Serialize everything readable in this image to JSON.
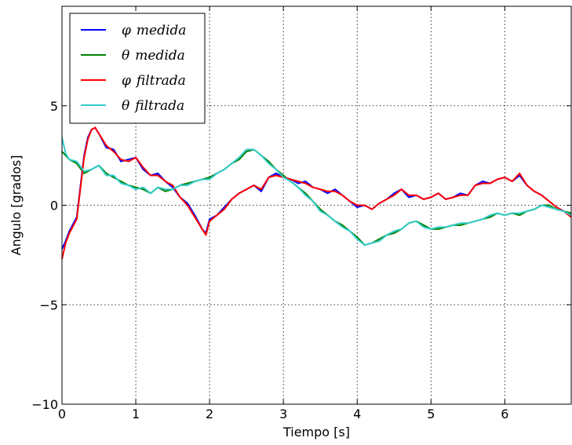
{
  "chart_data": {
    "type": "line",
    "title": "",
    "xlabel": "Tiempo [s]",
    "ylabel": "Angulo [grados]",
    "xlim": [
      0,
      6.9
    ],
    "ylim": [
      -10,
      10
    ],
    "xticks": [
      {
        "v": 0,
        "label": "0"
      },
      {
        "v": 1,
        "label": "1"
      },
      {
        "v": 2,
        "label": "2"
      },
      {
        "v": 3,
        "label": "3"
      },
      {
        "v": 4,
        "label": "4"
      },
      {
        "v": 5,
        "label": "5"
      },
      {
        "v": 6,
        "label": "6"
      }
    ],
    "yticks": [
      {
        "v": -10,
        "label": "−10"
      },
      {
        "v": -5,
        "label": "−5"
      },
      {
        "v": 0,
        "label": "0"
      },
      {
        "v": 5,
        "label": "5"
      }
    ],
    "grid": true,
    "legend_position": "top-left",
    "series": [
      {
        "name": "φ medida",
        "legend_symbol": "φ",
        "legend_word": "medida",
        "color": "#0000ff",
        "x": [
          0,
          0.05,
          0.1,
          0.2,
          0.3,
          0.35,
          0.4,
          0.45,
          0.5,
          0.6,
          0.7,
          0.8,
          0.9,
          1.0,
          1.1,
          1.2,
          1.3,
          1.4,
          1.5,
          1.6,
          1.7,
          1.8,
          1.9,
          1.95,
          2.0,
          2.1,
          2.2,
          2.3,
          2.4,
          2.5,
          2.6,
          2.7,
          2.8,
          2.9,
          3.0,
          3.1,
          3.2,
          3.3,
          3.4,
          3.5,
          3.6,
          3.7,
          3.8,
          3.9,
          4.0,
          4.1,
          4.2,
          4.3,
          4.4,
          4.5,
          4.6,
          4.7,
          4.8,
          4.9,
          5.0,
          5.1,
          5.2,
          5.3,
          5.4,
          5.5,
          5.6,
          5.7,
          5.8,
          5.9,
          6.0,
          6.1,
          6.2,
          6.3,
          6.4,
          6.5,
          6.6,
          6.7,
          6.8,
          6.9
        ],
        "y": [
          -2.2,
          -1.8,
          -1.3,
          -0.6,
          2.5,
          3.4,
          3.8,
          3.9,
          3.6,
          2.9,
          2.8,
          2.2,
          2.3,
          2.4,
          1.8,
          1.5,
          1.6,
          1.2,
          0.9,
          0.4,
          0.1,
          -0.5,
          -1.2,
          -1.4,
          -0.7,
          -0.5,
          -0.1,
          0.3,
          0.6,
          0.8,
          1.0,
          0.7,
          1.4,
          1.6,
          1.4,
          1.3,
          1.1,
          1.2,
          0.9,
          0.8,
          0.6,
          0.8,
          0.5,
          0.2,
          -0.1,
          0.0,
          -0.2,
          0.1,
          0.3,
          0.6,
          0.8,
          0.4,
          0.5,
          0.3,
          0.4,
          0.6,
          0.3,
          0.4,
          0.6,
          0.5,
          1.0,
          1.2,
          1.1,
          1.3,
          1.4,
          1.2,
          1.5,
          1.0,
          0.7,
          0.5,
          0.2,
          -0.1,
          -0.3,
          -0.5
        ]
      },
      {
        "name": "θ medida",
        "legend_symbol": "θ",
        "legend_word": "medida",
        "color": "#008000",
        "x": [
          0,
          0.05,
          0.1,
          0.2,
          0.3,
          0.4,
          0.5,
          0.6,
          0.7,
          0.8,
          0.9,
          1.0,
          1.1,
          1.2,
          1.3,
          1.4,
          1.5,
          1.6,
          1.7,
          1.8,
          1.9,
          2.0,
          2.1,
          2.2,
          2.3,
          2.4,
          2.5,
          2.6,
          2.7,
          2.8,
          2.9,
          3.0,
          3.1,
          3.2,
          3.3,
          3.4,
          3.5,
          3.6,
          3.7,
          3.8,
          3.9,
          4.0,
          4.1,
          4.2,
          4.3,
          4.4,
          4.5,
          4.6,
          4.7,
          4.8,
          4.9,
          5.0,
          5.1,
          5.2,
          5.3,
          5.4,
          5.5,
          5.6,
          5.7,
          5.8,
          5.9,
          6.0,
          6.1,
          6.2,
          6.3,
          6.4,
          6.5,
          6.6,
          6.7,
          6.8,
          6.9
        ],
        "y": [
          2.7,
          2.5,
          2.3,
          2.1,
          1.6,
          1.8,
          2.0,
          1.6,
          1.4,
          1.2,
          1.0,
          0.9,
          0.8,
          0.6,
          0.9,
          0.7,
          0.8,
          1.0,
          1.1,
          1.2,
          1.3,
          1.4,
          1.6,
          1.8,
          2.1,
          2.3,
          2.7,
          2.8,
          2.5,
          2.2,
          1.8,
          1.5,
          1.2,
          0.9,
          0.6,
          0.2,
          -0.2,
          -0.5,
          -0.8,
          -1.0,
          -1.3,
          -1.6,
          -2.0,
          -1.9,
          -1.7,
          -1.5,
          -1.4,
          -1.2,
          -0.9,
          -0.8,
          -1.0,
          -1.2,
          -1.2,
          -1.1,
          -1.0,
          -1.0,
          -0.9,
          -0.8,
          -0.7,
          -0.6,
          -0.4,
          -0.5,
          -0.4,
          -0.5,
          -0.3,
          -0.2,
          0.0,
          0.0,
          -0.2,
          -0.3,
          -0.4
        ]
      },
      {
        "name": "φ filtrada",
        "legend_symbol": "φ",
        "legend_word": "filtrada",
        "color": "#ff0000",
        "x": [
          0,
          0.05,
          0.1,
          0.2,
          0.3,
          0.35,
          0.4,
          0.45,
          0.5,
          0.6,
          0.7,
          0.8,
          0.9,
          1.0,
          1.1,
          1.2,
          1.3,
          1.4,
          1.5,
          1.6,
          1.7,
          1.8,
          1.9,
          1.95,
          2.0,
          2.1,
          2.2,
          2.3,
          2.4,
          2.5,
          2.6,
          2.7,
          2.8,
          2.9,
          3.0,
          3.1,
          3.2,
          3.3,
          3.4,
          3.5,
          3.6,
          3.7,
          3.8,
          3.9,
          4.0,
          4.1,
          4.2,
          4.3,
          4.4,
          4.5,
          4.6,
          4.7,
          4.8,
          4.9,
          5.0,
          5.1,
          5.2,
          5.3,
          5.4,
          5.5,
          5.6,
          5.7,
          5.8,
          5.9,
          6.0,
          6.1,
          6.2,
          6.3,
          6.4,
          6.5,
          6.6,
          6.7,
          6.8,
          6.9
        ],
        "y": [
          -2.7,
          -1.9,
          -1.4,
          -0.7,
          2.4,
          3.3,
          3.8,
          3.9,
          3.6,
          3.0,
          2.7,
          2.3,
          2.2,
          2.4,
          1.9,
          1.5,
          1.5,
          1.2,
          1.0,
          0.4,
          0.0,
          -0.6,
          -1.2,
          -1.5,
          -0.8,
          -0.5,
          -0.2,
          0.3,
          0.6,
          0.8,
          1.0,
          0.8,
          1.4,
          1.5,
          1.4,
          1.3,
          1.2,
          1.1,
          0.9,
          0.8,
          0.7,
          0.7,
          0.5,
          0.2,
          0.0,
          0.0,
          -0.2,
          0.1,
          0.3,
          0.5,
          0.8,
          0.5,
          0.5,
          0.3,
          0.4,
          0.6,
          0.3,
          0.4,
          0.5,
          0.5,
          1.0,
          1.1,
          1.1,
          1.3,
          1.4,
          1.2,
          1.6,
          1.0,
          0.7,
          0.5,
          0.2,
          -0.1,
          -0.3,
          -0.6
        ]
      },
      {
        "name": "θ filtrada",
        "legend_symbol": "θ",
        "legend_word": "filtrada",
        "color": "#33cccc",
        "x": [
          0,
          0.05,
          0.1,
          0.2,
          0.3,
          0.4,
          0.5,
          0.6,
          0.7,
          0.8,
          0.9,
          1.0,
          1.1,
          1.2,
          1.3,
          1.4,
          1.5,
          1.6,
          1.7,
          1.8,
          1.9,
          2.0,
          2.1,
          2.2,
          2.3,
          2.4,
          2.5,
          2.6,
          2.7,
          2.8,
          2.9,
          3.0,
          3.1,
          3.2,
          3.3,
          3.4,
          3.5,
          3.6,
          3.7,
          3.8,
          3.9,
          4.0,
          4.1,
          4.2,
          4.3,
          4.4,
          4.5,
          4.6,
          4.7,
          4.8,
          4.9,
          5.0,
          5.1,
          5.2,
          5.3,
          5.4,
          5.5,
          5.6,
          5.7,
          5.8,
          5.9,
          6.0,
          6.1,
          6.2,
          6.3,
          6.4,
          6.5,
          6.6,
          6.7,
          6.8,
          6.9
        ],
        "y": [
          3.4,
          2.6,
          2.3,
          2.2,
          1.7,
          1.8,
          2.0,
          1.5,
          1.5,
          1.1,
          1.0,
          0.8,
          0.9,
          0.6,
          0.9,
          0.8,
          0.8,
          1.0,
          1.0,
          1.2,
          1.3,
          1.3,
          1.6,
          1.8,
          2.1,
          2.4,
          2.8,
          2.8,
          2.5,
          2.1,
          1.8,
          1.4,
          1.2,
          0.9,
          0.5,
          0.2,
          -0.3,
          -0.5,
          -0.8,
          -1.1,
          -1.3,
          -1.7,
          -2.0,
          -1.9,
          -1.8,
          -1.5,
          -1.3,
          -1.2,
          -0.9,
          -0.8,
          -1.1,
          -1.2,
          -1.1,
          -1.1,
          -1.0,
          -0.9,
          -0.9,
          -0.8,
          -0.7,
          -0.5,
          -0.4,
          -0.5,
          -0.4,
          -0.4,
          -0.3,
          -0.2,
          0.0,
          -0.1,
          -0.2,
          -0.3,
          -0.5
        ]
      }
    ]
  }
}
